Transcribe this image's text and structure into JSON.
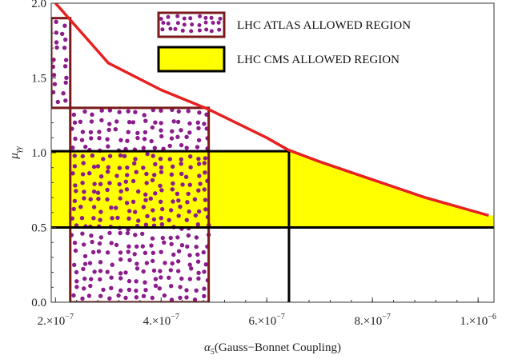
{
  "chart_data": {
    "type": "area",
    "xlabel": {
      "symbol": "α",
      "sub": "5",
      "text": "(Gauss−Bonnet Coupling)"
    },
    "ylabel": {
      "symbol": "μ",
      "sub": "γγ"
    },
    "xlim": [
      1.92e-07,
      1.03e-06
    ],
    "ylim": [
      0,
      2.0
    ],
    "x_ticks": [
      {
        "value": 2e-07,
        "mantissa": "2.",
        "exp": "−7"
      },
      {
        "value": 4e-07,
        "mantissa": "4.",
        "exp": "−7"
      },
      {
        "value": 6e-07,
        "mantissa": "6.",
        "exp": "−7"
      },
      {
        "value": 8e-07,
        "mantissa": "8.",
        "exp": "−7"
      },
      {
        "value": 1e-06,
        "mantissa": "1.",
        "exp": "−6"
      }
    ],
    "y_ticks": [
      "0.0",
      "0.5",
      "1.0",
      "1.5",
      "2.0"
    ],
    "grid": false,
    "legend_position": "top-right",
    "legend": [
      {
        "label": "LHC  ATLAS ALLOWED REGION",
        "style": "dotted",
        "fill": "#ffffff",
        "dot": "#8b1c8c",
        "stroke": "#7a1a1a"
      },
      {
        "label": "LHC CMS  ALLOWED REGION",
        "style": "solid",
        "fill": "#ffff00",
        "stroke": "#000000"
      }
    ],
    "curve": {
      "name": "",
      "color": "#e82020",
      "points": [
        [
          2e-07,
          2.0
        ],
        [
          3e-07,
          1.6
        ],
        [
          4e-07,
          1.42
        ],
        [
          4.9e-07,
          1.29
        ],
        [
          6e-07,
          1.1
        ],
        [
          6.4e-07,
          1.02
        ],
        [
          7e-07,
          0.94
        ],
        [
          8e-07,
          0.82
        ],
        [
          9e-07,
          0.7
        ],
        [
          1.02e-06,
          0.58
        ]
      ]
    },
    "cms_region": {
      "y_range": [
        0.5,
        1.01
      ],
      "x_split": 6.42e-07,
      "fill": "#ffff00",
      "line": "#000000"
    },
    "atlas_region": {
      "fill": "#ffffff",
      "dot": "#8b1c8c",
      "stroke": "#7a1a1a",
      "boxes": [
        {
          "x": [
            1.92e-07,
            2.28e-07
          ],
          "y": [
            1.3,
            1.9
          ]
        },
        {
          "x": [
            2.28e-07,
            4.9e-07
          ],
          "y": [
            0.0,
            1.3
          ]
        }
      ]
    }
  }
}
